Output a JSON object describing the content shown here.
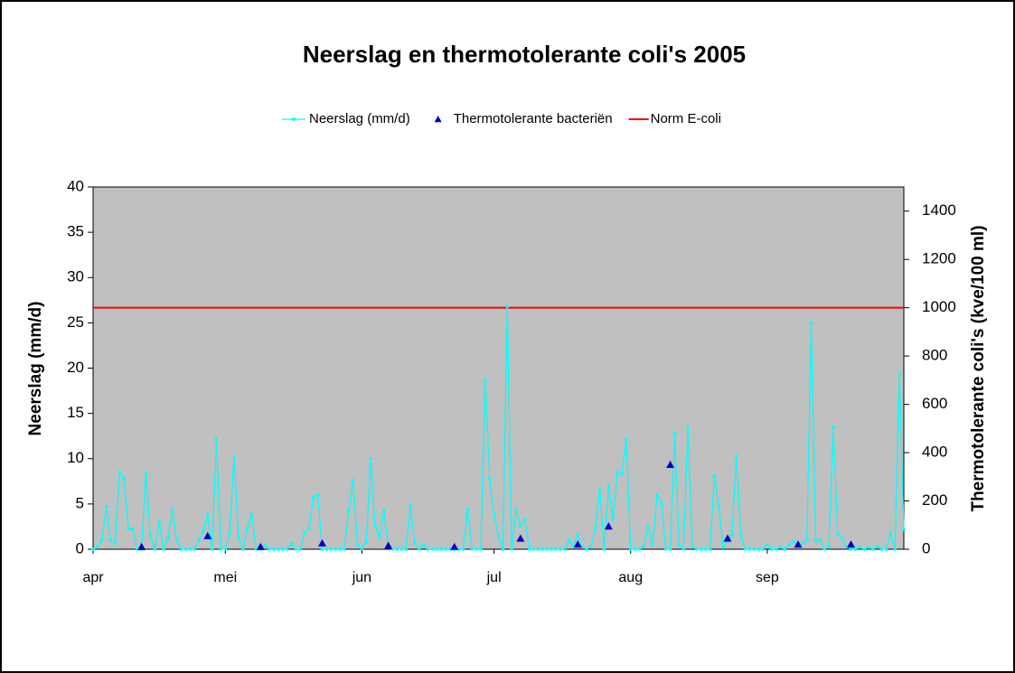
{
  "chart_data": {
    "type": "line",
    "title": "Neerslag en thermotolerante coli's 2005",
    "ylabel": "Neerslag (mm/d)",
    "y2label": "Thermotolerante coli's (kve/100 ml)",
    "ylim": [
      0,
      40
    ],
    "yticks": [
      0,
      5,
      10,
      15,
      20,
      25,
      30,
      35,
      40
    ],
    "y2lim": [
      0,
      1500
    ],
    "y2ticks": [
      0,
      200,
      400,
      600,
      800,
      1000,
      1200,
      1400
    ],
    "legend": "top",
    "plot_background": "#c0c0c0",
    "categories": [
      "apr",
      null,
      null,
      null,
      null,
      null,
      null,
      null,
      null,
      null,
      null,
      null,
      null,
      null,
      null,
      null,
      null,
      null,
      null,
      null,
      null,
      null,
      null,
      null,
      null,
      null,
      null,
      null,
      null,
      null,
      "mei",
      null,
      null,
      null,
      null,
      null,
      null,
      null,
      null,
      null,
      null,
      null,
      null,
      null,
      null,
      null,
      null,
      null,
      null,
      null,
      null,
      null,
      null,
      null,
      null,
      null,
      null,
      null,
      null,
      null,
      null,
      "jun",
      null,
      null,
      null,
      null,
      null,
      null,
      null,
      null,
      null,
      null,
      null,
      null,
      null,
      null,
      null,
      null,
      null,
      null,
      null,
      null,
      null,
      null,
      null,
      null,
      null,
      null,
      null,
      null,
      null,
      "jul",
      null,
      null,
      null,
      null,
      null,
      null,
      null,
      null,
      null,
      null,
      null,
      null,
      null,
      null,
      null,
      null,
      null,
      null,
      null,
      null,
      null,
      null,
      null,
      null,
      null,
      null,
      null,
      null,
      null,
      null,
      "aug",
      null,
      null,
      null,
      null,
      null,
      null,
      null,
      null,
      null,
      null,
      null,
      null,
      null,
      null,
      null,
      null,
      null,
      null,
      null,
      null,
      null,
      null,
      null,
      null,
      null,
      null,
      null,
      null,
      null,
      null,
      "sep",
      null,
      null,
      null,
      null,
      null,
      null,
      null,
      null,
      null,
      null,
      null,
      null,
      null,
      null,
      null,
      null,
      null,
      null,
      null,
      null,
      null,
      null,
      null,
      null,
      null,
      null,
      null,
      null,
      null,
      null,
      null
    ],
    "series": [
      {
        "name": "Neerslag (mm/d)",
        "color": "#00ffff",
        "marker": "dot",
        "values": [
          0,
          0.2,
          1,
          4.7,
          1,
          0.7,
          8.5,
          7.8,
          2.3,
          2.2,
          0,
          0,
          8.4,
          1.5,
          0,
          3,
          0,
          1.2,
          4.3,
          1,
          0,
          0,
          0,
          0,
          1,
          2,
          3.8,
          0,
          12.2,
          0,
          0,
          1.8,
          10.2,
          1.3,
          0,
          2.3,
          3.8,
          0,
          0,
          0.5,
          0,
          0,
          0,
          0,
          0,
          0.6,
          0,
          0,
          1.8,
          2.3,
          5.7,
          6,
          0,
          0,
          0,
          0,
          0,
          0,
          4.2,
          7.6,
          0.5,
          0.1,
          0.8,
          10,
          2.6,
          1.3,
          4.3,
          0.3,
          0,
          0,
          0,
          0,
          4.8,
          0.7,
          0,
          0.5,
          0,
          0,
          0,
          0,
          0,
          0,
          0,
          0,
          0,
          4.4,
          0,
          0,
          0,
          18.7,
          7.8,
          3.8,
          1.5,
          0,
          26.8,
          0,
          4.3,
          2.6,
          3.3,
          0,
          0,
          0,
          0,
          0,
          0,
          0,
          0,
          0,
          1,
          0.3,
          1.6,
          0.3,
          0,
          0.3,
          2.4,
          6.6,
          0,
          7,
          3.3,
          8.5,
          8.3,
          12.1,
          0,
          0,
          0,
          0.3,
          2.5,
          0.5,
          6,
          5,
          0,
          0,
          12.8,
          0.5,
          0,
          13.5,
          0.3,
          0,
          0,
          0,
          0,
          8.1,
          4.8,
          0.2,
          0.9,
          1.6,
          10.3,
          1.5,
          0,
          0,
          0,
          0,
          0,
          0.5,
          0,
          0,
          0.2,
          0,
          0.5,
          0.8,
          0.3,
          0.7,
          1,
          25,
          1,
          1,
          0,
          0.3,
          13.5,
          1.7,
          1.2,
          0.3,
          0,
          0,
          0.2,
          0,
          0.2,
          0,
          0.3,
          0,
          0,
          1.8,
          0,
          19.3,
          2.2
        ]
      },
      {
        "name": "Thermotolerante bacteriën",
        "color": "#0000cc",
        "marker": "triangle",
        "axis": "y2",
        "values": [
          null,
          null,
          null,
          null,
          null,
          null,
          null,
          null,
          null,
          null,
          null,
          10,
          null,
          null,
          null,
          null,
          null,
          null,
          null,
          null,
          null,
          null,
          null,
          null,
          null,
          null,
          55,
          null,
          null,
          null,
          null,
          null,
          null,
          null,
          null,
          null,
          null,
          null,
          10,
          null,
          null,
          null,
          null,
          null,
          null,
          null,
          null,
          null,
          null,
          null,
          null,
          null,
          25,
          null,
          null,
          null,
          null,
          null,
          null,
          null,
          null,
          null,
          null,
          null,
          null,
          null,
          null,
          15,
          null,
          null,
          null,
          null,
          null,
          null,
          null,
          null,
          null,
          null,
          null,
          null,
          null,
          null,
          10,
          null,
          null,
          null,
          null,
          null,
          null,
          null,
          null,
          null,
          null,
          null,
          null,
          null,
          null,
          45,
          null,
          null,
          null,
          null,
          null,
          null,
          null,
          null,
          null,
          null,
          null,
          null,
          20,
          null,
          null,
          null,
          null,
          null,
          null,
          95,
          null,
          null,
          null,
          null,
          null,
          null,
          null,
          null,
          null,
          null,
          null,
          null,
          null,
          350,
          null,
          null,
          null,
          null,
          null,
          null,
          null,
          null,
          null,
          null,
          null,
          null,
          45,
          null,
          null,
          null,
          null,
          null,
          null,
          null,
          null,
          null,
          null,
          null,
          null,
          null,
          null,
          null,
          20,
          null,
          null,
          null,
          null,
          null,
          null,
          null,
          null,
          null,
          null,
          null,
          20,
          null,
          null,
          null,
          null,
          null,
          null,
          null,
          null,
          null,
          null,
          null,
          null
        ]
      }
    ],
    "reference_line": {
      "name": "Norm E-coli",
      "value": 1000,
      "axis": "y2",
      "color": "#ff0000"
    }
  }
}
